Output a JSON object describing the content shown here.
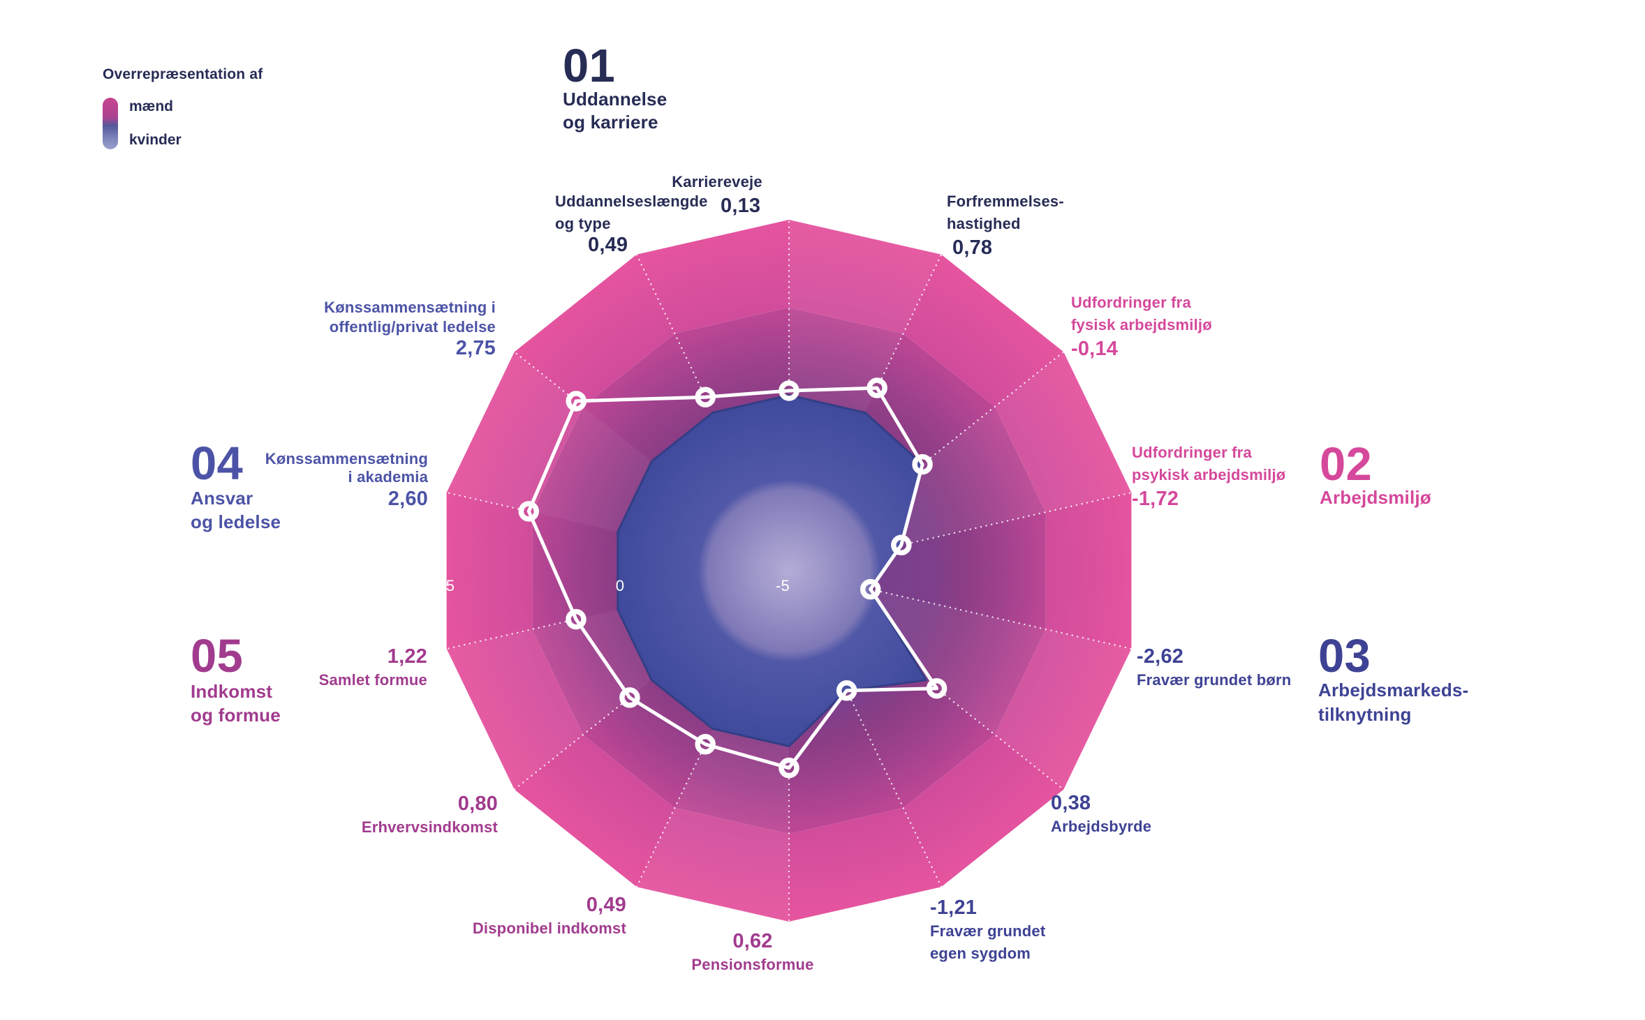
{
  "legend": {
    "title": "Overrepræsentation af",
    "items": [
      {
        "label": "mænd",
        "color": "#c7458f"
      },
      {
        "label": "kvinder",
        "color": "#99a0cc"
      }
    ]
  },
  "groups": [
    {
      "number": "01",
      "title_lines": [
        "Uddannelse",
        "og karriere"
      ],
      "color": "#272c55"
    },
    {
      "number": "02",
      "title_lines": [
        "Arbejdsmiljø"
      ],
      "color": "#d5489b"
    },
    {
      "number": "03",
      "title_lines": [
        "Arbejdsmarkeds-",
        "tilknytning"
      ],
      "color": "#3e4294"
    },
    {
      "number": "04",
      "title_lines": [
        "Ansvar",
        "og ledelse"
      ],
      "color": "#4c53a6"
    },
    {
      "number": "05",
      "title_lines": [
        "Indkomst",
        "og formue"
      ],
      "color": "#a13b8e"
    }
  ],
  "chart_data": {
    "type": "radar",
    "scale": {
      "min": -5,
      "max": 5,
      "zero_boundary": 0,
      "rings": [
        -2.5,
        0,
        2.5
      ],
      "start": "top",
      "direction": "clockwise"
    },
    "tick_labels": [
      "5",
      "0",
      "-5"
    ],
    "legend_note": "pink sectors = overrepresentation of men (positive), blue core = overrepresentation of women (negative)",
    "indicators": [
      {
        "label": "Karriereveje",
        "label_lines": [
          "Karriereveje"
        ],
        "value": 0.13,
        "value_label": "0,13",
        "group": "01"
      },
      {
        "label": "Forfremmelseshastighed",
        "label_lines": [
          "Forfremmelses-",
          "hastighed"
        ],
        "value": 0.78,
        "value_label": "0,78",
        "group": "01"
      },
      {
        "label": "Udfordringer fra fysisk arbejdsmiljø",
        "label_lines": [
          "Udfordringer fra",
          "fysisk arbejdsmiljø"
        ],
        "value": -0.14,
        "value_label": "-0,14",
        "group": "02"
      },
      {
        "label": "Udfordringer fra psykisk arbejdsmiljø",
        "label_lines": [
          "Udfordringer fra",
          "psykisk arbejdsmiljø"
        ],
        "value": -1.72,
        "value_label": "-1,72",
        "group": "02"
      },
      {
        "label": "Fravær grundet børn",
        "label_lines": [
          "Fravær grundet børn"
        ],
        "value": -2.62,
        "value_label": "-2,62",
        "group": "03"
      },
      {
        "label": "Arbejdsbyrde",
        "label_lines": [
          "Arbejdsbyrde"
        ],
        "value": 0.38,
        "value_label": "0,38",
        "group": "03"
      },
      {
        "label": "Fravær grundet egen sygdom",
        "label_lines": [
          "Fravær grundet",
          "egen sygdom"
        ],
        "value": -1.21,
        "value_label": "-1,21",
        "group": "03"
      },
      {
        "label": "Pensionsformue",
        "label_lines": [
          "Pensionsformue"
        ],
        "value": 0.62,
        "value_label": "0,62",
        "group": "05"
      },
      {
        "label": "Disponibel indkomst",
        "label_lines": [
          "Disponibel indkomst"
        ],
        "value": 0.49,
        "value_label": "0,49",
        "group": "05"
      },
      {
        "label": "Erhvervsindkomst",
        "label_lines": [
          "Erhvervsindkomst"
        ],
        "value": 0.8,
        "value_label": "0,80",
        "group": "05"
      },
      {
        "label": "Samlet formue",
        "label_lines": [
          "Samlet formue"
        ],
        "value": 1.22,
        "value_label": "1,22",
        "group": "05"
      },
      {
        "label": "Kønssammensætning i akademia",
        "label_lines": [
          "Kønssammensætning",
          "i akademia"
        ],
        "value": 2.6,
        "value_label": "2,60",
        "group": "04"
      },
      {
        "label": "Kønssammensætning i offentlig/privat ledelse",
        "label_lines": [
          "Kønssammensætning i",
          "offentlig/privat ledelse"
        ],
        "value": 2.75,
        "value_label": "2,75",
        "group": "04"
      },
      {
        "label": "Uddannelseslængde og type",
        "label_lines": [
          "Uddannelseslængde",
          "og type"
        ],
        "value": 0.49,
        "value_label": "0,49",
        "group": "01"
      }
    ]
  },
  "colors": {
    "background": "#ffffff",
    "pink_outer": "#e6549f",
    "pink_ring_step": "#d14d9c",
    "pink_mid": "#bf4795",
    "pink_zero": "#8c3d85",
    "pink_core": "#6f4192",
    "blue_center": "#b3acd6",
    "blue_mid": "#7e78b7",
    "blue_band": "#5158a7",
    "blue_edge": "#3f4a9c",
    "blue_stroke": "#333e85",
    "data_line": "#ffffff",
    "tick_text": "#ffffff",
    "group01": "#272c55",
    "group02": "#d5489b",
    "group03": "#3e4294",
    "group04": "#4c53a6",
    "group05": "#a13b8e"
  }
}
